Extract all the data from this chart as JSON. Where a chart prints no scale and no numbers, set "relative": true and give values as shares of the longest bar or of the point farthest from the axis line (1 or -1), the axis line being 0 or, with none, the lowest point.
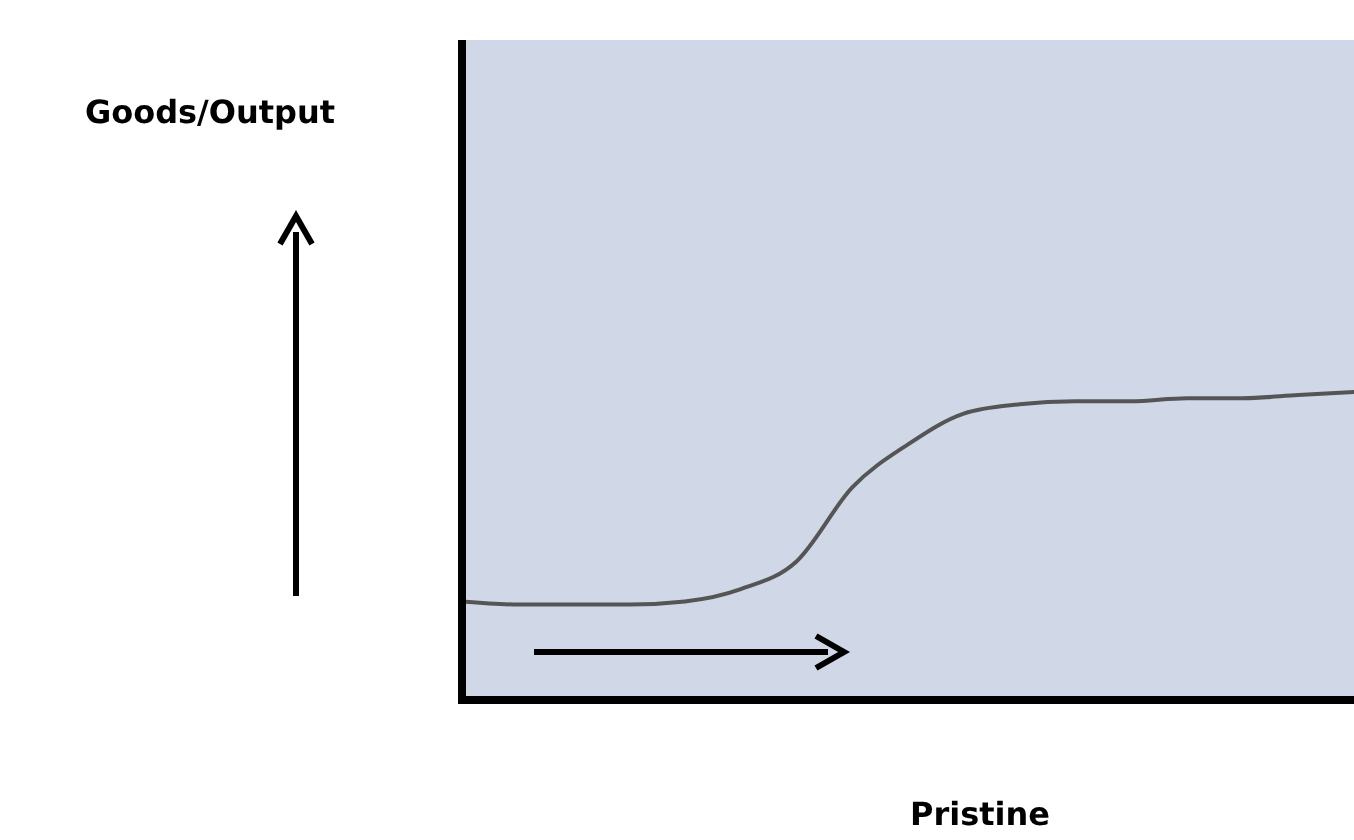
{
  "chart_data": {
    "type": "line",
    "relative": true,
    "xlabel": "Pristine",
    "annotations": [
      "Goods/Output"
    ],
    "categories": [
      null,
      null,
      null,
      null,
      null,
      null,
      null,
      null,
      null,
      null,
      null,
      null,
      null,
      null,
      null,
      null,
      null
    ],
    "series": [
      {
        "color": "#555555",
        "values": [
          0.32,
          0.31,
          0.31,
          0.31,
          0.32,
          0.36,
          0.45,
          0.69,
          0.83,
          0.93,
          0.96,
          0.97,
          0.97,
          0.98,
          0.98,
          0.99,
          1
        ]
      }
    ],
    "marker": "none",
    "line_style": "solid"
  }
}
